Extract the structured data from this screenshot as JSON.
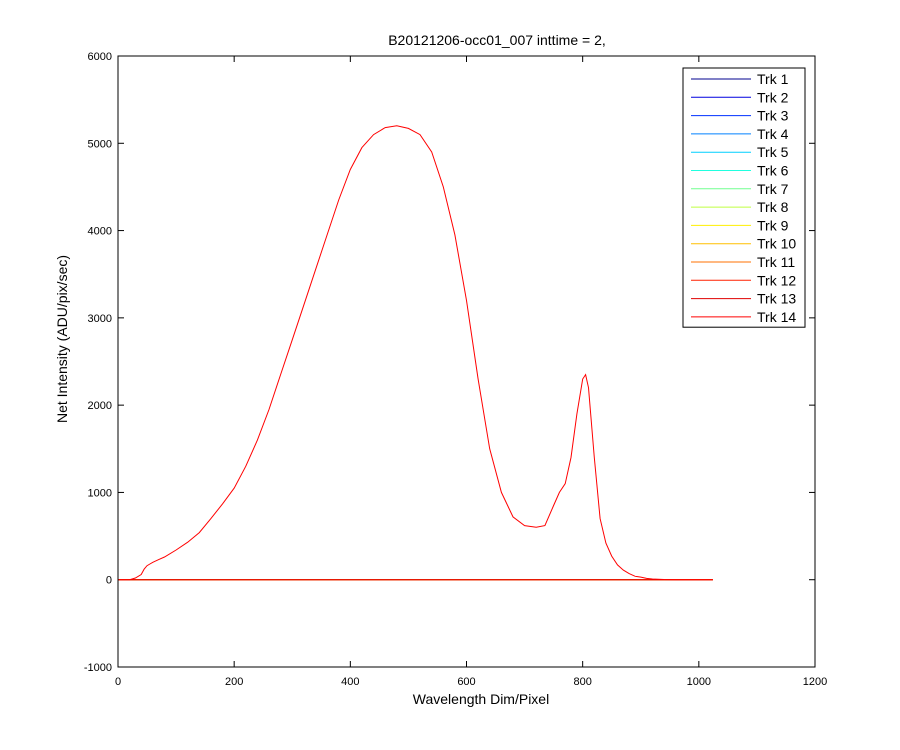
{
  "chart_data": {
    "type": "line",
    "title": "B20121206-occ01_007 inttime = 2,",
    "xlabel": "Wavelength Dim/Pixel",
    "ylabel": "Net Intensity (ADU/pix/sec)",
    "xlim": [
      0,
      1200
    ],
    "ylim": [
      -1000,
      6000
    ],
    "xticks": [
      0,
      200,
      400,
      600,
      800,
      1000,
      1200
    ],
    "yticks": [
      -1000,
      0,
      1000,
      2000,
      3000,
      4000,
      5000,
      6000
    ],
    "grid": false,
    "legend_position": "top-right",
    "series": [
      {
        "name": "Trk 1",
        "color": "#00008f",
        "x": [
          1,
          1024
        ],
        "y": [
          0,
          0
        ]
      },
      {
        "name": "Trk 2",
        "color": "#0000df",
        "x": [
          1,
          1024
        ],
        "y": [
          0,
          0
        ]
      },
      {
        "name": "Trk 3",
        "color": "#0030ff",
        "x": [
          1,
          1024
        ],
        "y": [
          0,
          0
        ]
      },
      {
        "name": "Trk 4",
        "color": "#0080ff",
        "x": [
          1,
          1024
        ],
        "y": [
          0,
          0
        ]
      },
      {
        "name": "Trk 5",
        "color": "#00cfff",
        "x": [
          1,
          1024
        ],
        "y": [
          0,
          0
        ]
      },
      {
        "name": "Trk 6",
        "color": "#20ffdf",
        "x": [
          1,
          1024
        ],
        "y": [
          0,
          0
        ]
      },
      {
        "name": "Trk 7",
        "color": "#70ff8f",
        "x": [
          1,
          1024
        ],
        "y": [
          0,
          0
        ]
      },
      {
        "name": "Trk 8",
        "color": "#bfff40",
        "x": [
          1,
          1024
        ],
        "y": [
          0,
          0
        ]
      },
      {
        "name": "Trk 9",
        "color": "#ffef00",
        "x": [
          1,
          1024
        ],
        "y": [
          0,
          0
        ]
      },
      {
        "name": "Trk 10",
        "color": "#ffbf00",
        "x": [
          1,
          1024
        ],
        "y": [
          0,
          0
        ]
      },
      {
        "name": "Trk 11",
        "color": "#ff7000",
        "x": [
          1,
          1024
        ],
        "y": [
          0,
          0
        ]
      },
      {
        "name": "Trk 12",
        "color": "#ff2000",
        "x": [
          1,
          1024
        ],
        "y": [
          0,
          0
        ]
      },
      {
        "name": "Trk 13",
        "color": "#df0000",
        "x": [
          1,
          1024
        ],
        "y": [
          0,
          0
        ]
      },
      {
        "name": "Trk 14",
        "color": "#ff0000",
        "x": [
          1,
          20,
          30,
          40,
          45,
          50,
          55,
          60,
          70,
          80,
          100,
          120,
          140,
          160,
          180,
          200,
          220,
          240,
          260,
          280,
          300,
          320,
          340,
          360,
          380,
          400,
          420,
          440,
          460,
          480,
          500,
          520,
          540,
          560,
          580,
          600,
          620,
          640,
          660,
          680,
          700,
          720,
          735,
          750,
          760,
          770,
          780,
          790,
          800,
          805,
          810,
          820,
          830,
          840,
          850,
          860,
          870,
          880,
          890,
          900,
          910,
          920,
          940,
          960,
          1024
        ],
        "y": [
          0,
          0,
          20,
          60,
          120,
          160,
          180,
          200,
          230,
          260,
          340,
          430,
          540,
          700,
          870,
          1050,
          1300,
          1600,
          1950,
          2350,
          2750,
          3150,
          3550,
          3950,
          4350,
          4700,
          4950,
          5100,
          5180,
          5200,
          5170,
          5100,
          4900,
          4500,
          3950,
          3200,
          2300,
          1500,
          1000,
          720,
          620,
          600,
          620,
          850,
          1000,
          1100,
          1400,
          1900,
          2300,
          2350,
          2200,
          1400,
          700,
          420,
          270,
          170,
          110,
          70,
          40,
          30,
          15,
          8,
          3,
          0,
          0
        ]
      }
    ]
  }
}
